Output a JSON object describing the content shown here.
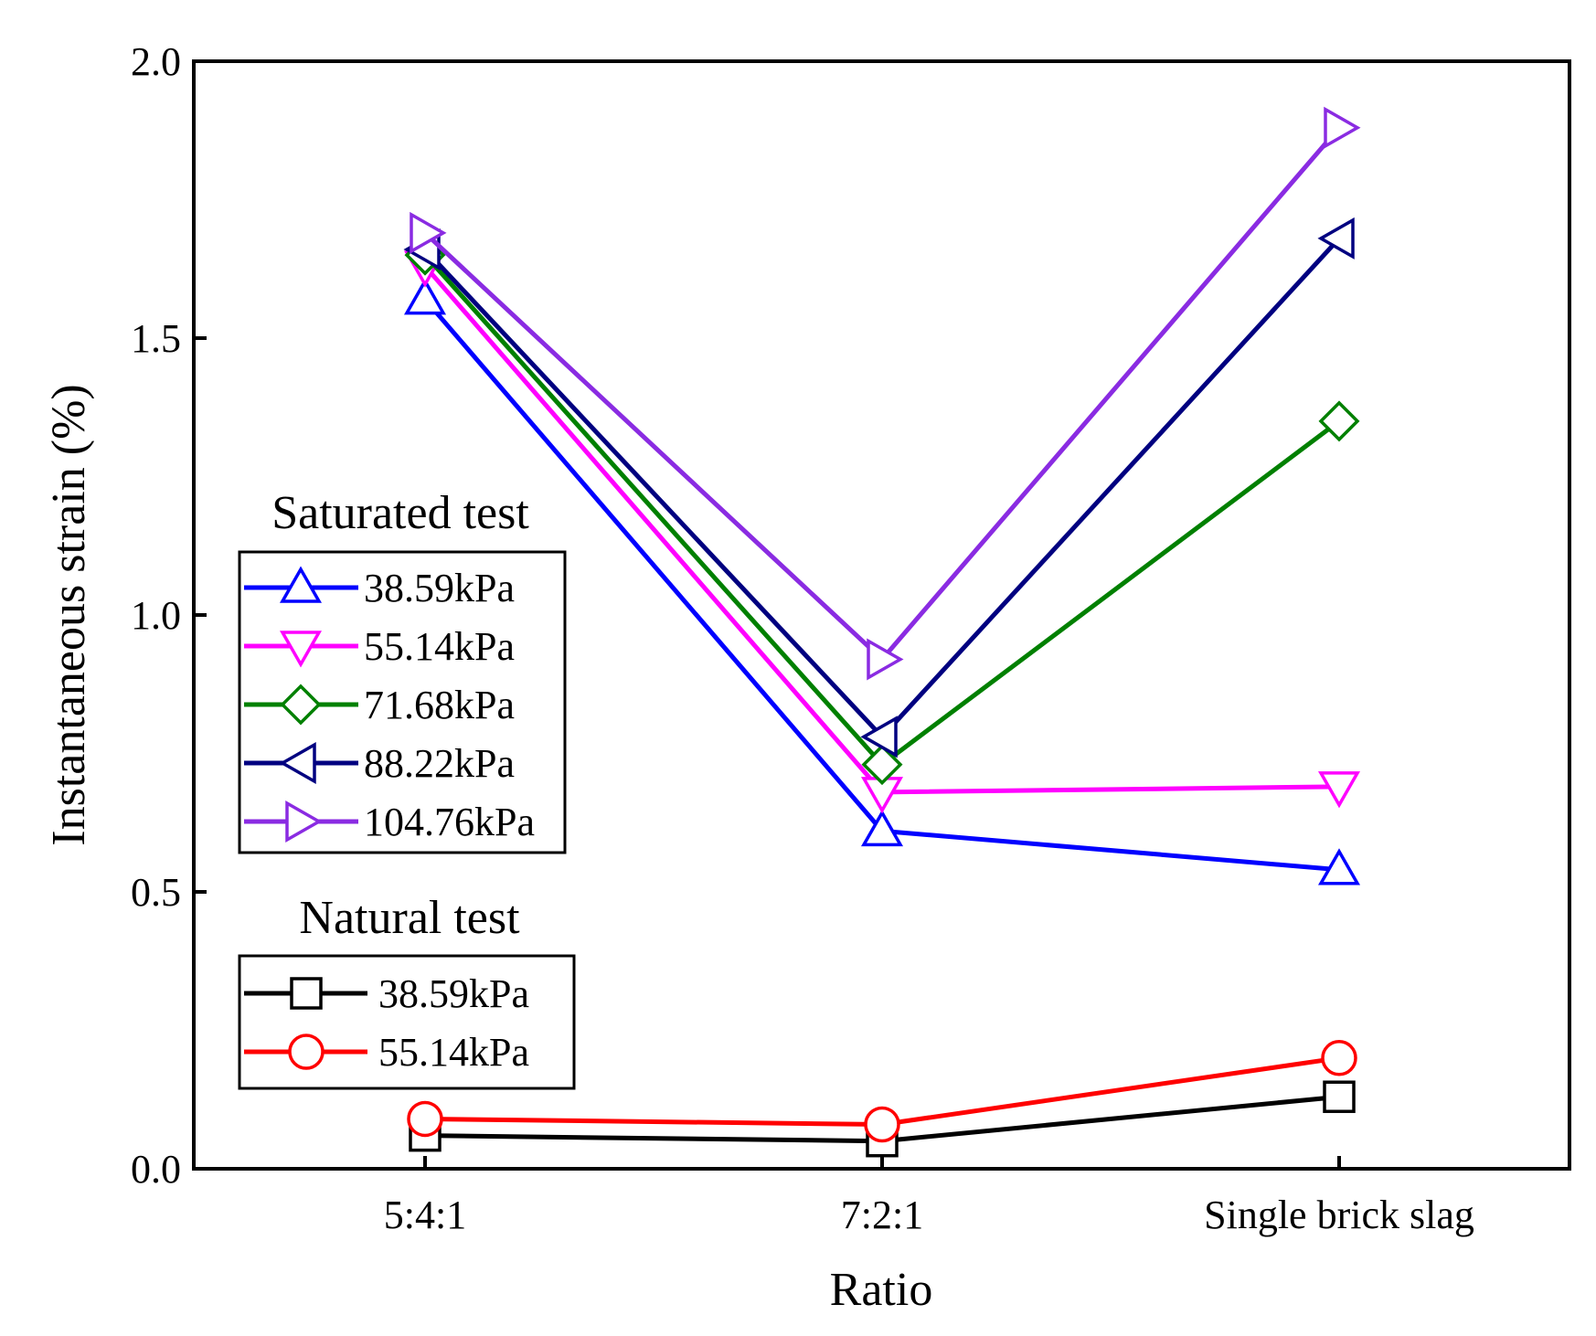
{
  "chart_data": {
    "type": "line",
    "title": "",
    "xlabel": "Ratio",
    "ylabel": "Instantaneous strain (%)",
    "ylim": [
      0,
      2.0
    ],
    "yticks": [
      0.0,
      0.5,
      1.0,
      1.5,
      2.0
    ],
    "ytick_labels": [
      "0.0",
      "0.5",
      "1.0",
      "1.5",
      "2.0"
    ],
    "categories": [
      "5:4:1",
      "7:2:1",
      "Single brick slag"
    ],
    "grid": false,
    "legend_groups": [
      {
        "title": "Saturated test",
        "placement": "middle-left",
        "series": [
          {
            "name": "38.59kPa",
            "color": "#0000ff",
            "marker": "triangle-up",
            "values": [
              1.57,
              0.61,
              0.54
            ]
          },
          {
            "name": "55.14kPa",
            "color": "#ff00ff",
            "marker": "triangle-down",
            "values": [
              1.63,
              0.68,
              0.69
            ]
          },
          {
            "name": "71.68kPa",
            "color": "#008000",
            "marker": "diamond",
            "values": [
              1.65,
              0.73,
              1.35
            ]
          },
          {
            "name": "88.22kPa",
            "color": "#000080",
            "marker": "triangle-left",
            "values": [
              1.66,
              0.78,
              1.68
            ]
          },
          {
            "name": "104.76kPa",
            "color": "#8a2be2",
            "marker": "triangle-right",
            "values": [
              1.69,
              0.92,
              1.88
            ]
          }
        ]
      },
      {
        "title": "Natural test",
        "placement": "lower-left",
        "series": [
          {
            "name": "38.59kPa",
            "color": "#000000",
            "marker": "square",
            "values": [
              0.06,
              0.05,
              0.13
            ]
          },
          {
            "name": "55.14kPa",
            "color": "#ff0000",
            "marker": "circle",
            "values": [
              0.09,
              0.08,
              0.2
            ]
          }
        ]
      }
    ]
  }
}
